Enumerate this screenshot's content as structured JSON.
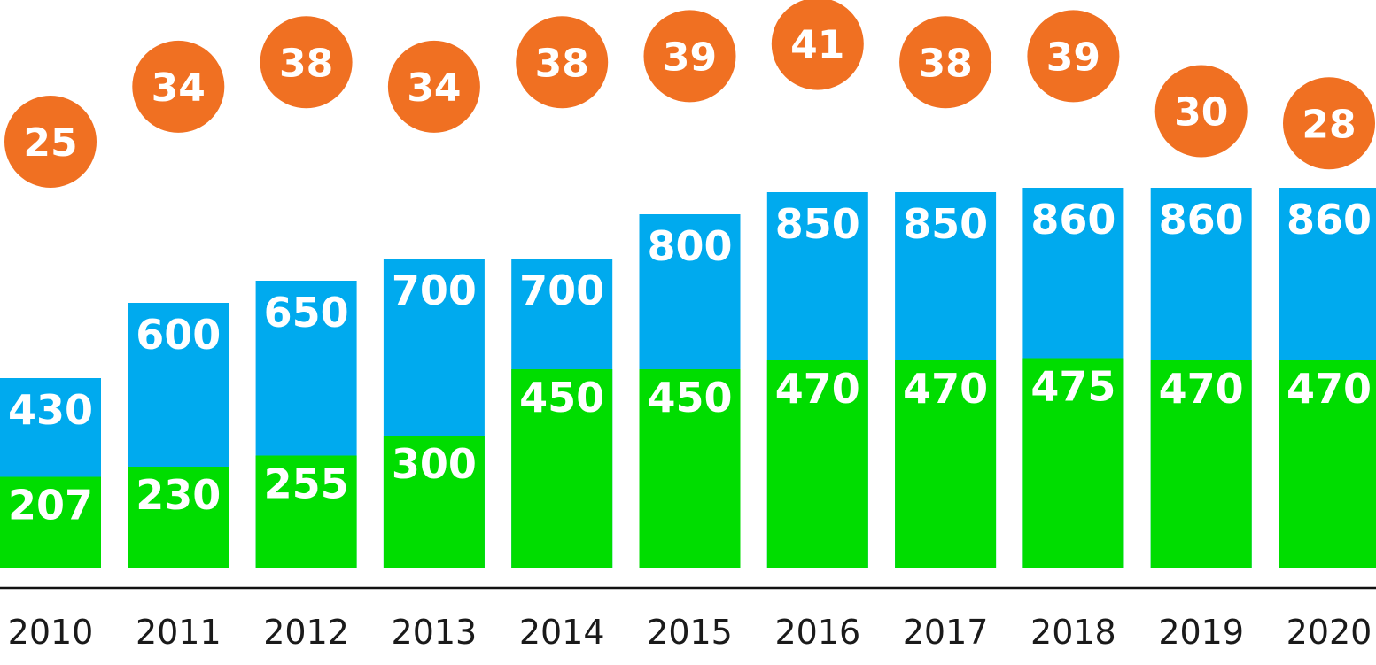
{
  "colors": {
    "bar_total": "#00aaee",
    "bar_base": "#00dd00",
    "bubble": "#f07022",
    "label_text": "#ffffff",
    "axis": "#111111",
    "tick_text": "#1a1a1a"
  },
  "chart_data": {
    "type": "bar",
    "title": "",
    "xlabel": "",
    "ylabel": "",
    "categories": [
      "2010",
      "2011",
      "2012",
      "2013",
      "2014",
      "2015",
      "2016",
      "2017",
      "2018",
      "2019",
      "2020"
    ],
    "series": [
      {
        "values": [
          430,
          600,
          650,
          700,
          700,
          800,
          850,
          850,
          860,
          860,
          860
        ]
      },
      {
        "values": [
          207,
          230,
          255,
          300,
          450,
          450,
          470,
          470,
          475,
          470,
          470
        ]
      },
      {
        "values": [
          25,
          34,
          38,
          34,
          38,
          39,
          41,
          38,
          39,
          30,
          28
        ]
      }
    ],
    "ylim": [
      0,
      1000
    ],
    "grid": false,
    "legend": "none"
  }
}
